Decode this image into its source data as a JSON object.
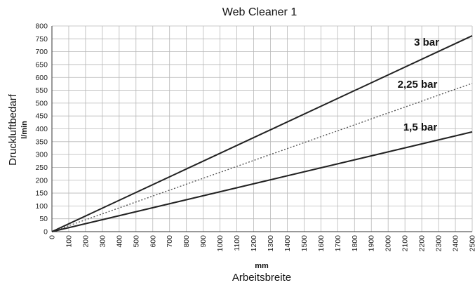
{
  "chart_data": {
    "type": "line",
    "title": "Web Cleaner 1",
    "xlabel": "Arbeitsbreite",
    "xunit": "mm",
    "ylabel": "Druckluftbedarf",
    "yunit": "l/min",
    "xlim": [
      0,
      2500
    ],
    "ylim": [
      0,
      800
    ],
    "xticks": [
      0,
      100,
      200,
      300,
      400,
      500,
      600,
      700,
      800,
      900,
      1000,
      1100,
      1200,
      1300,
      1400,
      1500,
      1600,
      1700,
      1800,
      1900,
      2000,
      2100,
      2200,
      2300,
      2400,
      2500
    ],
    "yticks": [
      0,
      50,
      100,
      150,
      200,
      250,
      300,
      350,
      400,
      450,
      500,
      550,
      600,
      650,
      700,
      750,
      800
    ],
    "grid": true,
    "series": [
      {
        "name": "3 bar",
        "x": [
          0,
          2500
        ],
        "y": [
          0,
          762
        ],
        "style": "solid",
        "color": "#222222"
      },
      {
        "name": "2,25 bar",
        "x": [
          0,
          2500
        ],
        "y": [
          0,
          577
        ],
        "style": "dotted",
        "color": "#555555"
      },
      {
        "name": "1,5 bar",
        "x": [
          0,
          2500
        ],
        "y": [
          0,
          388
        ],
        "style": "solid",
        "color": "#222222"
      }
    ]
  }
}
